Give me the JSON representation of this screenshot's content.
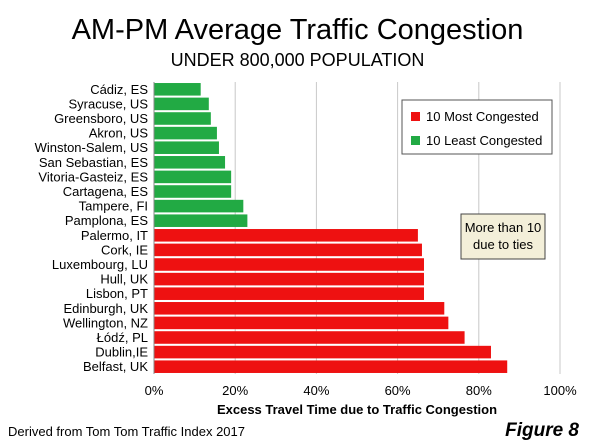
{
  "header": {
    "title": "AM-PM Average Traffic Congestion",
    "subtitle": "UNDER 800,000  POPULATION"
  },
  "footer": {
    "source": "Derived from Tom Tom Traffic Index 2017",
    "figure": "Figure 8"
  },
  "chart_data": {
    "type": "bar",
    "orientation": "horizontal",
    "xlabel": "Excess Travel Time due to Traffic Congestion",
    "ylabel": "",
    "xlim": [
      0,
      100
    ],
    "x_ticks": [
      "0%",
      "20%",
      "40%",
      "60%",
      "80%",
      "100%"
    ],
    "grid": true,
    "legend_position": "top-right",
    "categories": [
      "Cádiz, ES",
      "Syracuse, US",
      "Greensboro, US",
      "Akron, US",
      "Winston-Salem, US",
      "San Sebastian, ES",
      "Vitoria-Gasteiz, ES",
      "Cartagena, ES",
      "Tampere, FI",
      "Pamplona, ES",
      "Palermo, IT",
      "Cork, IE",
      "Luxembourg, LU",
      "Hull, UK",
      "Lisbon, PT",
      "Edinburgh, UK",
      "Wellington, NZ",
      "Łódź, PL",
      "Dublin,IE",
      "Belfast, UK"
    ],
    "values": [
      11.5,
      13.5,
      14,
      15.5,
      16,
      17.5,
      19,
      19,
      22,
      23,
      65,
      66,
      66.5,
      66.5,
      66.5,
      71.5,
      72.5,
      76.5,
      83,
      87
    ],
    "groups": [
      "least",
      "least",
      "least",
      "least",
      "least",
      "least",
      "least",
      "least",
      "least",
      "least",
      "most",
      "most",
      "most",
      "most",
      "most",
      "most",
      "most",
      "most",
      "most",
      "most"
    ],
    "series": [
      {
        "name": "10 Most Congested",
        "group": "most",
        "color": "#ee1111"
      },
      {
        "name": "10 Least Congested",
        "group": "least",
        "color": "#22aa44"
      }
    ],
    "annotation": "More than 10 due to ties"
  }
}
